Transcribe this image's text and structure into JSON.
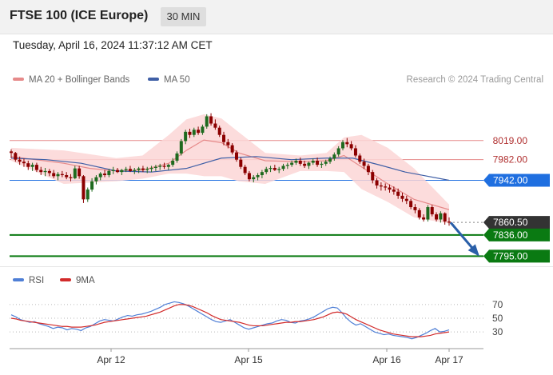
{
  "header": {
    "title": "FTSE 100 (ICE Europe)",
    "timeframe": "30 MIN"
  },
  "datetime": "Tuesday, April 16, 2024 11:37:12 AM CET",
  "research": "Research © 2024 Trading Central",
  "colors": {
    "ma20": "#e68a8a",
    "band": "#fcd6d6",
    "ma50": "#3f5fa6",
    "blue": "#1f6fe0",
    "green": "#0a7a12",
    "current": "#333333",
    "candle_up": "#1f6a1f",
    "candle_down": "#8b0000",
    "rsi": "#4f7fd6",
    "rsi_ma": "#d22b2b"
  },
  "chart_data": [
    {
      "type": "candlestick",
      "legend": [
        {
          "name": "MA 20 + Bollinger Bands",
          "color": "#e68a8a"
        },
        {
          "name": "MA 50",
          "color": "#3f5fa6"
        }
      ],
      "ylim": [
        7780,
        8090
      ],
      "x_labels": [
        "Apr 12",
        "Apr 15",
        "Apr 16",
        "Apr 17"
      ],
      "candles": [
        [
          7998,
          8002,
          7985,
          7995
        ],
        [
          7995,
          7997,
          7978,
          7982
        ],
        [
          7982,
          7988,
          7972,
          7978
        ],
        [
          7978,
          7984,
          7968,
          7975
        ],
        [
          7975,
          7980,
          7962,
          7968
        ],
        [
          7968,
          7976,
          7960,
          7972
        ],
        [
          7972,
          7976,
          7958,
          7962
        ],
        [
          7962,
          7968,
          7952,
          7958
        ],
        [
          7958,
          7966,
          7950,
          7960
        ],
        [
          7960,
          7964,
          7950,
          7956
        ],
        [
          7956,
          7962,
          7946,
          7950
        ],
        [
          7950,
          7958,
          7942,
          7954
        ],
        [
          7954,
          7960,
          7948,
          7952
        ],
        [
          7952,
          7958,
          7944,
          7948
        ],
        [
          7948,
          7954,
          7940,
          7946
        ],
        [
          7946,
          7970,
          7944,
          7965
        ],
        [
          7965,
          7970,
          7945,
          7950
        ],
        [
          7950,
          7952,
          7898,
          7905
        ],
        [
          7905,
          7928,
          7900,
          7924
        ],
        [
          7924,
          7946,
          7920,
          7940
        ],
        [
          7940,
          7952,
          7934,
          7948
        ],
        [
          7948,
          7958,
          7942,
          7955
        ],
        [
          7955,
          7962,
          7948,
          7952
        ],
        [
          7952,
          7964,
          7948,
          7960
        ],
        [
          7960,
          7968,
          7954,
          7962
        ],
        [
          7962,
          7966,
          7956,
          7958
        ],
        [
          7958,
          7964,
          7952,
          7962
        ],
        [
          7962,
          7968,
          7958,
          7964
        ],
        [
          7964,
          7970,
          7958,
          7960
        ],
        [
          7960,
          7966,
          7954,
          7962
        ],
        [
          7962,
          7968,
          7956,
          7965
        ],
        [
          7965,
          7970,
          7958,
          7962
        ],
        [
          7962,
          7968,
          7956,
          7964
        ],
        [
          7964,
          7970,
          7958,
          7966
        ],
        [
          7966,
          7972,
          7960,
          7968
        ],
        [
          7968,
          7974,
          7962,
          7970
        ],
        [
          7970,
          7976,
          7964,
          7968
        ],
        [
          7968,
          7974,
          7962,
          7972
        ],
        [
          7972,
          7985,
          7968,
          7980
        ],
        [
          7980,
          7998,
          7976,
          7994
        ],
        [
          7994,
          8022,
          7990,
          8018
        ],
        [
          8018,
          8040,
          8012,
          8036
        ],
        [
          8036,
          8042,
          8024,
          8030
        ],
        [
          8030,
          8044,
          8026,
          8040
        ],
        [
          8040,
          8046,
          8030,
          8034
        ],
        [
          8034,
          8050,
          8030,
          8046
        ],
        [
          8046,
          8070,
          8042,
          8066
        ],
        [
          8066,
          8072,
          8048,
          8052
        ],
        [
          8052,
          8060,
          8040,
          8044
        ],
        [
          8044,
          8048,
          8026,
          8030
        ],
        [
          8030,
          8036,
          8010,
          8016
        ],
        [
          8016,
          8022,
          8004,
          8010
        ],
        [
          8010,
          8014,
          7992,
          7996
        ],
        [
          7996,
          8000,
          7978,
          7982
        ],
        [
          7982,
          7986,
          7964,
          7968
        ],
        [
          7968,
          7972,
          7952,
          7956
        ],
        [
          7956,
          7960,
          7940,
          7944
        ],
        [
          7944,
          7952,
          7938,
          7948
        ],
        [
          7948,
          7956,
          7942,
          7952
        ],
        [
          7952,
          7962,
          7946,
          7958
        ],
        [
          7958,
          7968,
          7954,
          7964
        ],
        [
          7964,
          7970,
          7958,
          7966
        ],
        [
          7966,
          7972,
          7960,
          7962
        ],
        [
          7962,
          7968,
          7956,
          7964
        ],
        [
          7964,
          7974,
          7960,
          7970
        ],
        [
          7970,
          7976,
          7964,
          7972
        ],
        [
          7972,
          7980,
          7968,
          7976
        ],
        [
          7976,
          7984,
          7972,
          7980
        ],
        [
          7980,
          7986,
          7970,
          7974
        ],
        [
          7974,
          7980,
          7966,
          7970
        ],
        [
          7970,
          7978,
          7964,
          7976
        ],
        [
          7976,
          7984,
          7972,
          7980
        ],
        [
          7980,
          7986,
          7968,
          7972
        ],
        [
          7972,
          7978,
          7966,
          7974
        ],
        [
          7974,
          7982,
          7970,
          7978
        ],
        [
          7978,
          7988,
          7974,
          7984
        ],
        [
          7984,
          7996,
          7980,
          7992
        ],
        [
          7992,
          8008,
          7988,
          8004
        ],
        [
          8004,
          8020,
          8000,
          8016
        ],
        [
          8016,
          8024,
          8006,
          8012
        ],
        [
          8012,
          8018,
          8000,
          8004
        ],
        [
          8004,
          8010,
          7986,
          7990
        ],
        [
          7990,
          7994,
          7974,
          7978
        ],
        [
          7978,
          7984,
          7964,
          7970
        ],
        [
          7970,
          7974,
          7952,
          7958
        ],
        [
          7958,
          7962,
          7936,
          7942
        ],
        [
          7942,
          7946,
          7926,
          7932
        ],
        [
          7932,
          7938,
          7922,
          7930
        ],
        [
          7930,
          7936,
          7922,
          7928
        ],
        [
          7928,
          7934,
          7918,
          7924
        ],
        [
          7924,
          7930,
          7914,
          7920
        ],
        [
          7920,
          7926,
          7906,
          7912
        ],
        [
          7912,
          7918,
          7900,
          7906
        ],
        [
          7906,
          7912,
          7896,
          7902
        ],
        [
          7902,
          7906,
          7886,
          7890
        ],
        [
          7890,
          7896,
          7878,
          7884
        ],
        [
          7884,
          7888,
          7866,
          7870
        ],
        [
          7870,
          7876,
          7862,
          7866
        ],
        [
          7866,
          7894,
          7862,
          7890
        ],
        [
          7890,
          7894,
          7872,
          7876
        ],
        [
          7876,
          7880,
          7862,
          7866
        ],
        [
          7866,
          7882,
          7860,
          7878
        ],
        [
          7878,
          7880,
          7856,
          7862
        ],
        [
          7862,
          7870,
          7854,
          7860
        ]
      ],
      "ma20": [
        [
          7990,
          7988
        ],
        [
          0.12,
          7975
        ],
        [
          0.18,
          7965
        ],
        [
          0.24,
          7960
        ],
        [
          0.3,
          7962
        ],
        [
          0.36,
          7975
        ],
        [
          0.4,
          8000
        ],
        [
          0.44,
          8020
        ],
        [
          0.48,
          8015
        ],
        [
          0.52,
          7995
        ],
        [
          0.58,
          7980
        ],
        [
          0.66,
          7978
        ],
        [
          0.72,
          7980
        ],
        [
          0.76,
          7990
        ],
        [
          0.8,
          7968
        ],
        [
          0.86,
          7935
        ],
        [
          0.92,
          7905
        ],
        [
          1.0,
          7885
        ]
      ],
      "bb_upper": [
        [
          0,
          8005
        ],
        [
          0.12,
          8000
        ],
        [
          0.24,
          7985
        ],
        [
          0.3,
          7990
        ],
        [
          0.36,
          8030
        ],
        [
          0.4,
          8060
        ],
        [
          0.44,
          8070
        ],
        [
          0.48,
          8062
        ],
        [
          0.52,
          8035
        ],
        [
          0.58,
          7995
        ],
        [
          0.66,
          7990
        ],
        [
          0.72,
          7995
        ],
        [
          0.76,
          8025
        ],
        [
          0.8,
          8030
        ],
        [
          0.86,
          8005
        ],
        [
          0.92,
          7965
        ],
        [
          1.0,
          7895
        ]
      ],
      "bb_lower": [
        [
          0,
          7980
        ],
        [
          0.12,
          7935
        ],
        [
          0.24,
          7940
        ],
        [
          0.3,
          7945
        ],
        [
          0.36,
          7955
        ],
        [
          0.4,
          7955
        ],
        [
          0.44,
          7950
        ],
        [
          0.48,
          7950
        ],
        [
          0.52,
          7940
        ],
        [
          0.58,
          7935
        ],
        [
          0.66,
          7960
        ],
        [
          0.72,
          7960
        ],
        [
          0.76,
          7958
        ],
        [
          0.8,
          7925
        ],
        [
          0.86,
          7900
        ],
        [
          0.92,
          7870
        ],
        [
          1.0,
          7858
        ]
      ],
      "ma50": [
        [
          0,
          7985
        ],
        [
          0.08,
          7982
        ],
        [
          0.16,
          7975
        ],
        [
          0.24,
          7960
        ],
        [
          0.32,
          7958
        ],
        [
          0.4,
          7965
        ],
        [
          0.48,
          7985
        ],
        [
          0.56,
          7988
        ],
        [
          0.64,
          7982
        ],
        [
          0.72,
          7985
        ],
        [
          0.78,
          7985
        ],
        [
          0.84,
          7972
        ],
        [
          0.9,
          7958
        ],
        [
          1.0,
          7942
        ]
      ],
      "levels": [
        {
          "value": 8019.0,
          "label": "8019.00",
          "kind": "resistance"
        },
        {
          "value": 7982.0,
          "label": "7982.00",
          "kind": "resistance"
        },
        {
          "value": 7942.0,
          "label": "7942.00",
          "kind": "pivot"
        },
        {
          "value": 7860.5,
          "label": "7860.50",
          "kind": "current"
        },
        {
          "value": 7836.0,
          "label": "7836.00",
          "kind": "support"
        },
        {
          "value": 7795.0,
          "label": "7795.00",
          "kind": "support"
        }
      ]
    },
    {
      "type": "line",
      "legend": [
        {
          "name": "RSI",
          "color": "#4f7fd6"
        },
        {
          "name": "9MA",
          "color": "#d22b2b"
        }
      ],
      "ylim": [
        15,
        85
      ],
      "y_ticks": [
        70,
        50,
        30
      ],
      "rsi": [
        55,
        52,
        48,
        46,
        44,
        45,
        42,
        40,
        38,
        35,
        37,
        36,
        33,
        35,
        34,
        32,
        36,
        38,
        42,
        46,
        48,
        47,
        46,
        49,
        52,
        54,
        53,
        55,
        56,
        58,
        60,
        63,
        66,
        70,
        72,
        74,
        73,
        71,
        68,
        64,
        60,
        56,
        52,
        48,
        45,
        44,
        46,
        48,
        44,
        40,
        36,
        34,
        36,
        38,
        40,
        42,
        43,
        46,
        48,
        47,
        44,
        43,
        46,
        47,
        49,
        52,
        56,
        60,
        64,
        66,
        65,
        58,
        50,
        44,
        40,
        42,
        38,
        34,
        30,
        28,
        26,
        27,
        25,
        24,
        23,
        22,
        20,
        22,
        25,
        28,
        32,
        35,
        30,
        31,
        33
      ],
      "rsi_ma": [
        50,
        49,
        47,
        46,
        45,
        44,
        43,
        42,
        41,
        40,
        39,
        38,
        38,
        37,
        37,
        37,
        38,
        39,
        40,
        42,
        44,
        45,
        46,
        47,
        48,
        49,
        50,
        51,
        52,
        53,
        55,
        57,
        59,
        62,
        65,
        68,
        70,
        70,
        69,
        67,
        64,
        61,
        58,
        54,
        51,
        48,
        47,
        46,
        45,
        44,
        42,
        40,
        39,
        39,
        39,
        40,
        41,
        42,
        43,
        44,
        44,
        45,
        45,
        46,
        47,
        48,
        50,
        52,
        55,
        58,
        59,
        58,
        56,
        52,
        48,
        45,
        42,
        39,
        36,
        33,
        31,
        29,
        27,
        26,
        25,
        24,
        23,
        23,
        23,
        24,
        25,
        27,
        28,
        29,
        30
      ]
    }
  ]
}
